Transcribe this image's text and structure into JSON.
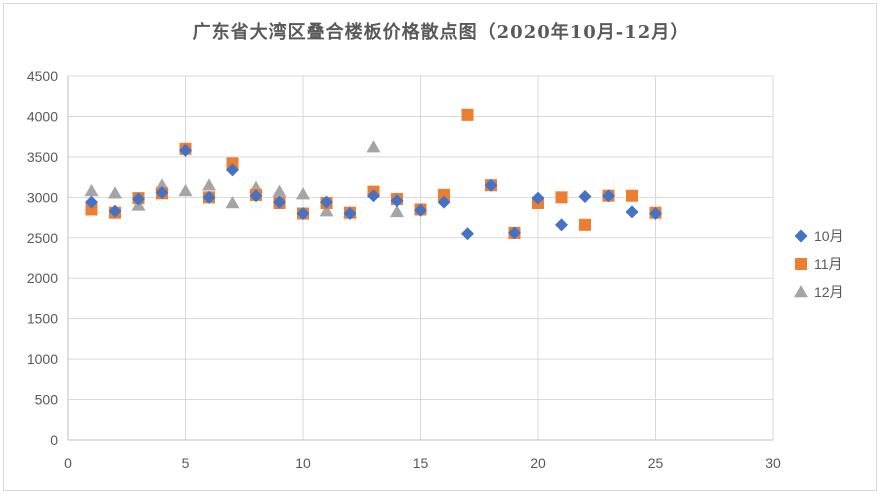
{
  "chart_data": {
    "type": "scatter",
    "title": "广东省大湾区叠合楼板价格散点图（2020年10月-12月）",
    "xlabel": "",
    "ylabel": "",
    "xlim": [
      0,
      30
    ],
    "ylim": [
      0,
      4500
    ],
    "x_ticks": [
      "0",
      "5",
      "10",
      "15",
      "20",
      "25",
      "30"
    ],
    "y_ticks": [
      "0",
      "500",
      "1000",
      "1500",
      "2000",
      "2500",
      "3000",
      "3500",
      "4000",
      "4500"
    ],
    "grid": true,
    "legend_position": "right",
    "series": [
      {
        "name": "10月",
        "marker": "diamond",
        "color": "#4472c4",
        "points": [
          [
            1,
            2940
          ],
          [
            2,
            2830
          ],
          [
            3,
            2980
          ],
          [
            4,
            3060
          ],
          [
            5,
            3580
          ],
          [
            6,
            3000
          ],
          [
            7,
            3340
          ],
          [
            8,
            3020
          ],
          [
            9,
            2940
          ],
          [
            10,
            2800
          ],
          [
            11,
            2940
          ],
          [
            12,
            2800
          ],
          [
            13,
            3020
          ],
          [
            14,
            2960
          ],
          [
            15,
            2840
          ],
          [
            16,
            2940
          ],
          [
            17,
            2550
          ],
          [
            18,
            3150
          ],
          [
            19,
            2560
          ],
          [
            20,
            2990
          ],
          [
            21,
            2660
          ],
          [
            22,
            3010
          ],
          [
            23,
            3020
          ],
          [
            24,
            2820
          ],
          [
            25,
            2800
          ]
        ]
      },
      {
        "name": "11月",
        "marker": "square",
        "color": "#ed7d31",
        "points": [
          [
            1,
            2850
          ],
          [
            2,
            2810
          ],
          [
            3,
            2990
          ],
          [
            4,
            3050
          ],
          [
            5,
            3600
          ],
          [
            6,
            3000
          ],
          [
            7,
            3420
          ],
          [
            8,
            3030
          ],
          [
            9,
            2930
          ],
          [
            10,
            2800
          ],
          [
            11,
            2930
          ],
          [
            12,
            2810
          ],
          [
            13,
            3070
          ],
          [
            14,
            2980
          ],
          [
            15,
            2850
          ],
          [
            16,
            3030
          ],
          [
            17,
            4020
          ],
          [
            18,
            3150
          ],
          [
            19,
            2560
          ],
          [
            20,
            2930
          ],
          [
            21,
            3000
          ],
          [
            22,
            2660
          ],
          [
            23,
            3020
          ],
          [
            24,
            3020
          ],
          [
            25,
            2810
          ]
        ]
      },
      {
        "name": "12月",
        "marker": "triangle",
        "color": "#a5a5a5",
        "points": [
          [
            1,
            3080
          ],
          [
            2,
            3050
          ],
          [
            3,
            2900
          ],
          [
            4,
            3150
          ],
          [
            5,
            3080
          ],
          [
            6,
            3150
          ],
          [
            7,
            2930
          ],
          [
            8,
            3120
          ],
          [
            9,
            3070
          ],
          [
            10,
            3040
          ],
          [
            11,
            2830
          ],
          [
            12,
            2810
          ],
          [
            13,
            3620
          ],
          [
            14,
            2820
          ]
        ]
      }
    ]
  }
}
